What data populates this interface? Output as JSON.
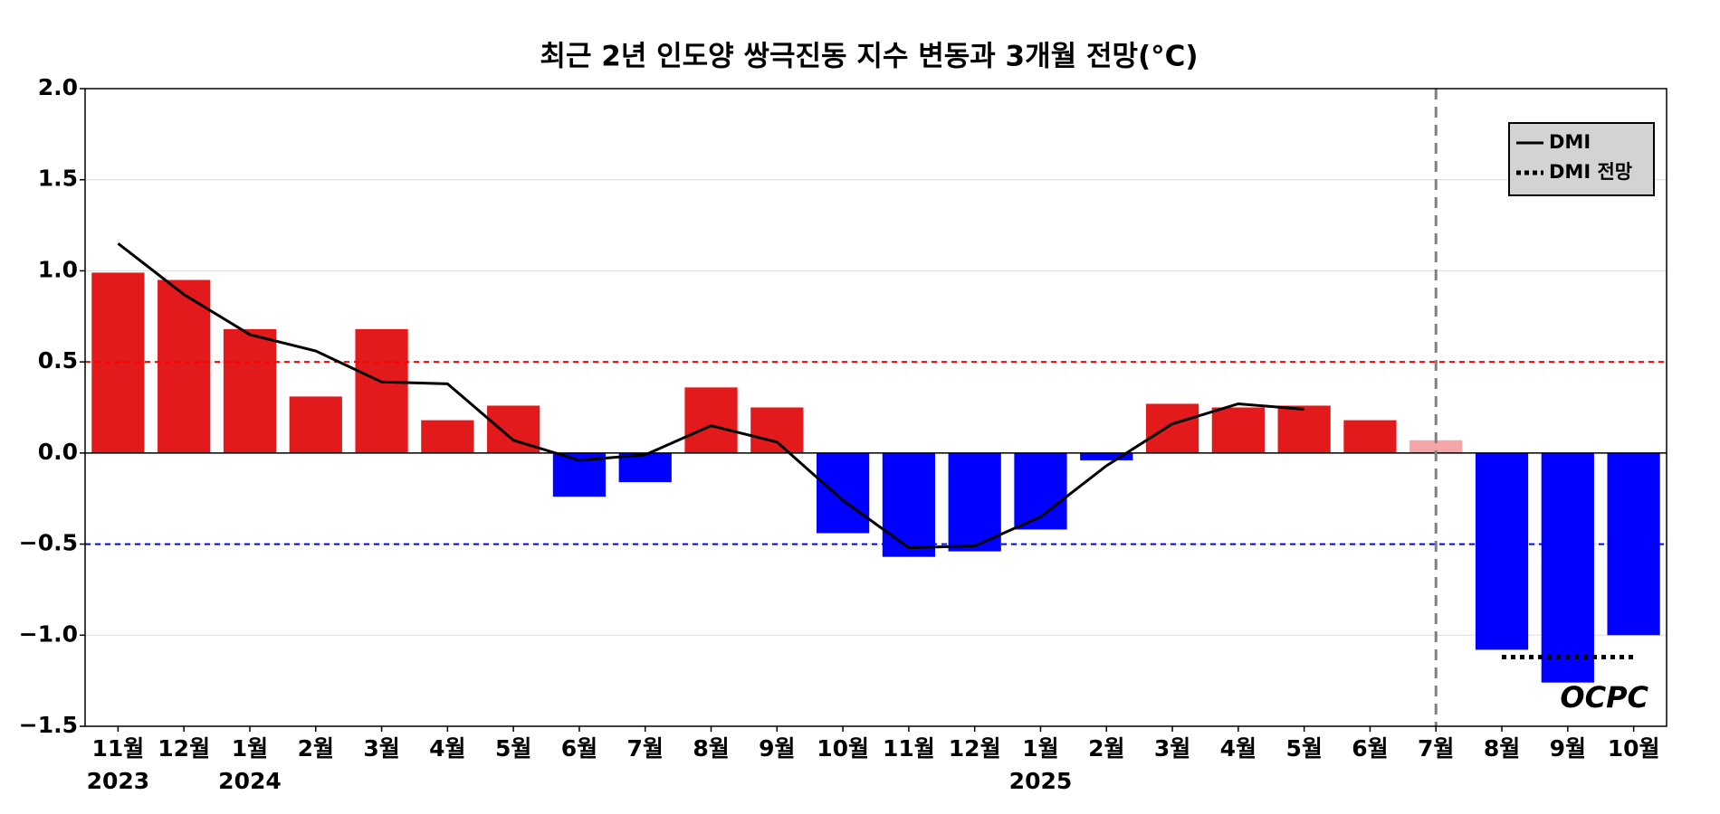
{
  "chart_data": {
    "type": "bar",
    "title": "최근 2년 인도양 쌍극진동 지수 변동과 3개월 전망(°C)",
    "categories": [
      "11월",
      "12월",
      "1월",
      "2월",
      "3월",
      "4월",
      "5월",
      "6월",
      "7월",
      "8월",
      "9월",
      "10월",
      "11월",
      "12월",
      "1월",
      "2월",
      "3월",
      "4월",
      "5월",
      "6월",
      "7월",
      "8월",
      "9월",
      "10월"
    ],
    "years": [
      "2023",
      null,
      "2024",
      null,
      null,
      null,
      null,
      null,
      null,
      null,
      null,
      null,
      null,
      null,
      "2025",
      null,
      null,
      null,
      null,
      null,
      null,
      null,
      null,
      null
    ],
    "bars": {
      "values": [
        0.99,
        0.95,
        0.68,
        0.31,
        0.68,
        0.18,
        0.26,
        -0.24,
        -0.16,
        0.36,
        0.25,
        -0.44,
        -0.57,
        -0.54,
        -0.42,
        -0.04,
        0.27,
        0.25,
        0.26,
        0.18,
        0.07,
        -1.08,
        -1.26,
        -1.0
      ],
      "colors": [
        "#e31a1c",
        "#e31a1c",
        "#e31a1c",
        "#e31a1c",
        "#e31a1c",
        "#e31a1c",
        "#e31a1c",
        "#0000ff",
        "#0000ff",
        "#e31a1c",
        "#e31a1c",
        "#0000ff",
        "#0000ff",
        "#0000ff",
        "#0000ff",
        "#0000ff",
        "#e31a1c",
        "#e31a1c",
        "#e31a1c",
        "#e31a1c",
        "#f4a5a8",
        "#0000ff",
        "#0000ff",
        "#0000ff"
      ]
    },
    "series": [
      {
        "name": "DMI",
        "color": "#000000",
        "style": "solid",
        "values": [
          1.15,
          0.87,
          0.65,
          0.56,
          0.39,
          0.38,
          0.07,
          -0.04,
          -0.01,
          0.15,
          0.06,
          -0.26,
          -0.52,
          -0.51,
          -0.35,
          -0.07,
          0.16,
          0.27,
          0.24,
          null,
          null,
          null,
          null,
          null
        ]
      },
      {
        "name": "DMI 전망",
        "color": "#000000",
        "style": "dotted",
        "values": [
          null,
          null,
          null,
          null,
          null,
          null,
          null,
          null,
          null,
          null,
          null,
          null,
          null,
          null,
          null,
          null,
          null,
          null,
          null,
          null,
          null,
          -1.12,
          -1.12,
          -1.12
        ]
      }
    ],
    "ylim": [
      -1.5,
      2.0
    ],
    "yticks": [
      {
        "value": -1.5,
        "label": "−1.5"
      },
      {
        "value": -1.0,
        "label": "−1.0"
      },
      {
        "value": -0.5,
        "label": "−0.5"
      },
      {
        "value": 0,
        "label": "0.0"
      },
      {
        "value": 0.5,
        "label": "0.5"
      },
      {
        "value": 1.0,
        "label": "1.0"
      },
      {
        "value": 1.5,
        "label": "1.5"
      },
      {
        "value": 2.0,
        "label": "2.0"
      }
    ],
    "grid": true,
    "reference_lines": [
      {
        "value": 0.5,
        "color": "#ff0000"
      },
      {
        "value": -0.5,
        "color": "#0000ff"
      }
    ],
    "vline_index": 20,
    "legend": "upper right",
    "logo": "OCPC"
  }
}
